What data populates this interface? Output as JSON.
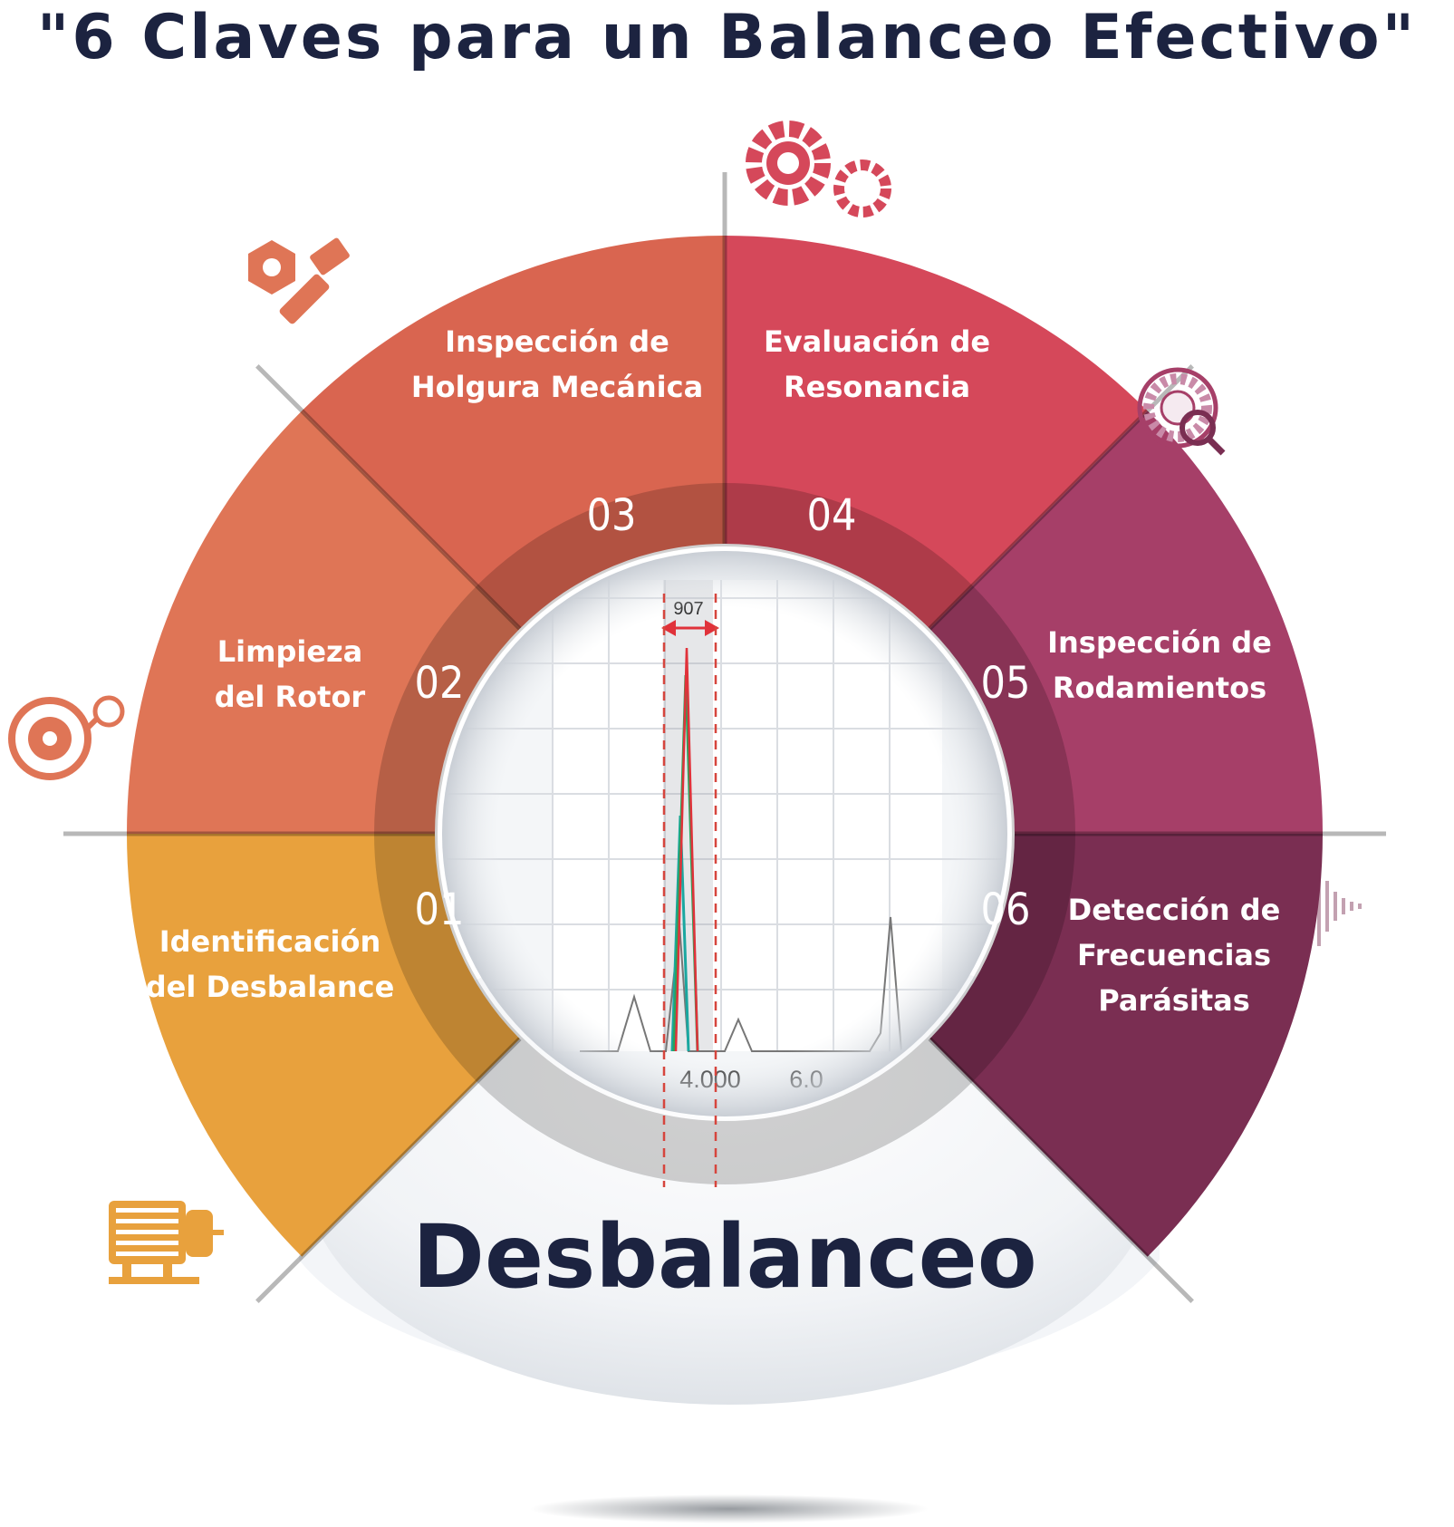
{
  "title": "\"6 Claves para un Balanceo Efectivo\"",
  "center_label": "Desbalanceo",
  "segments": [
    {
      "number": "01",
      "line1": "Identificación",
      "line2": "del Desbalance",
      "line3": "",
      "color": "#E8A13D",
      "icon": "motor-icon"
    },
    {
      "number": "02",
      "line1": "Limpieza",
      "line2": "del Rotor",
      "line3": "",
      "color": "#DF7556",
      "icon": "rotor-gauge-icon"
    },
    {
      "number": "03",
      "line1": "Inspección de",
      "line2": "Holgura Mecánica",
      "line3": "",
      "color": "#D96550",
      "icon": "bolt-nut-icon"
    },
    {
      "number": "04",
      "line1": "Evaluación de",
      "line2": "Resonancia",
      "line3": "",
      "color": "#D5485A",
      "icon": "gears-icon"
    },
    {
      "number": "05",
      "line1": "Inspección de",
      "line2": "Rodamientos",
      "line3": "",
      "color": "#A63F68",
      "icon": "bearing-magnifier-icon"
    },
    {
      "number": "06",
      "line1": "Detección de",
      "line2": "Frecuencias",
      "line3": "Parásitas",
      "color": "#7A2E52",
      "icon": "waveform-icon"
    }
  ],
  "spectrum": {
    "peak_label": "907",
    "tick_labels": [
      "4.000",
      "6.0"
    ]
  }
}
